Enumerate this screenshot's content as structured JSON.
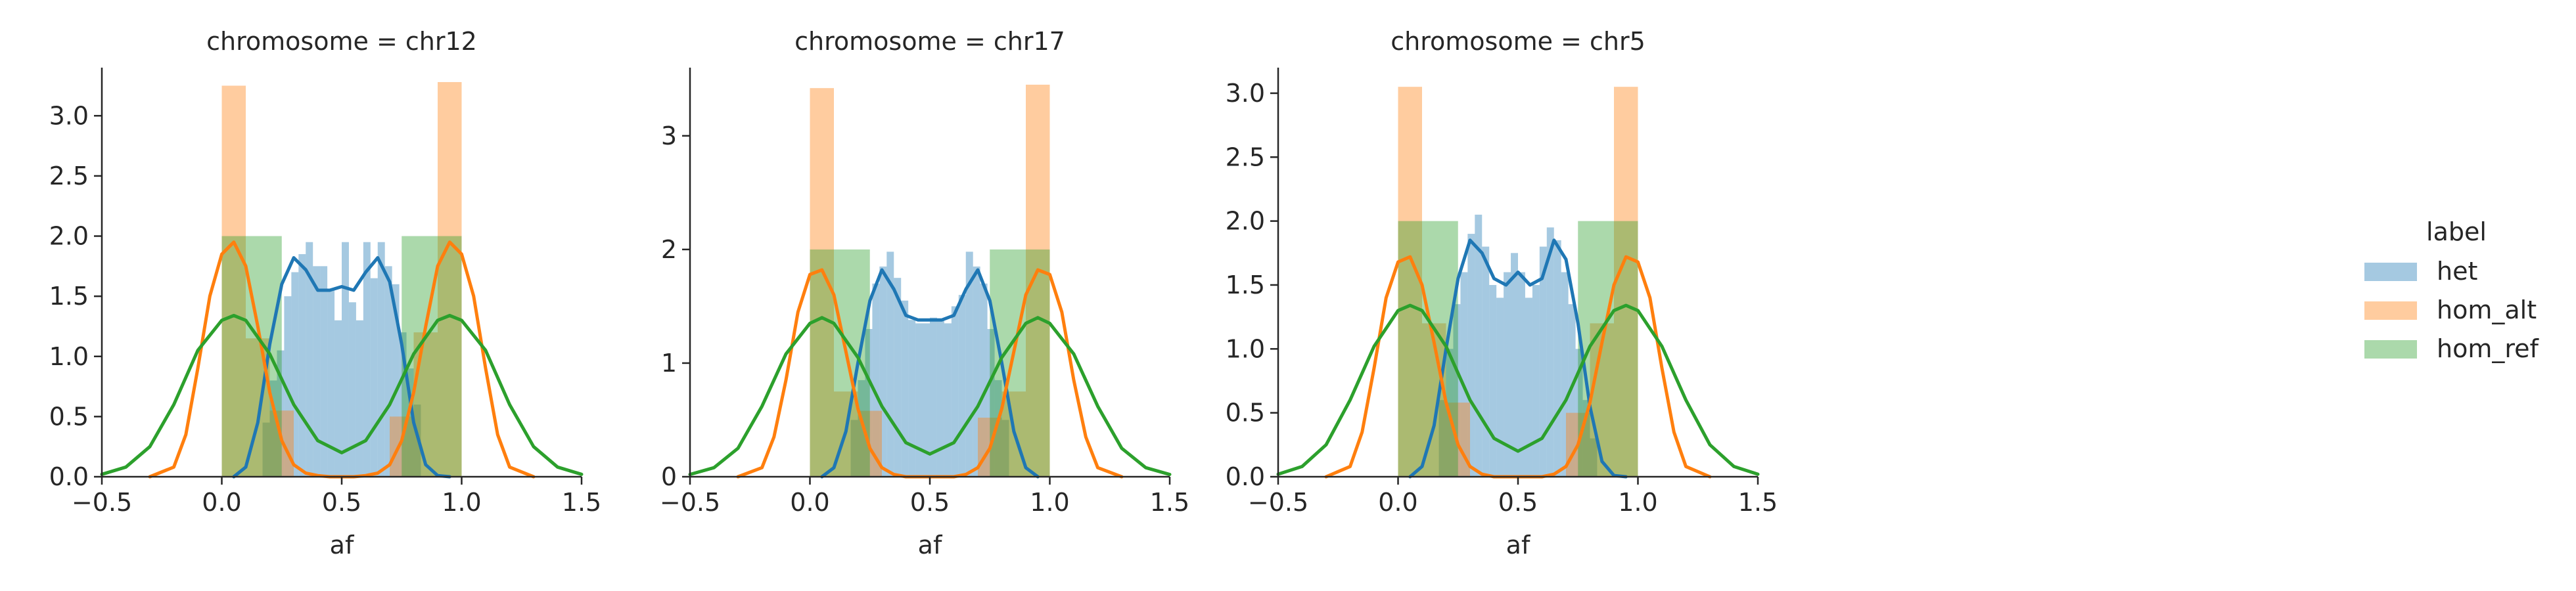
{
  "legend": {
    "title": "label",
    "entries": [
      {
        "label": "het",
        "color": "#1f77b4"
      },
      {
        "label": "hom_alt",
        "color": "#ff7f0e"
      },
      {
        "label": "hom_ref",
        "color": "#2ca02c"
      }
    ]
  },
  "chart_data": [
    {
      "type": "histogram+kde",
      "title": "chromosome = chr12",
      "xlabel": "af",
      "ylabel": "",
      "xlim": [
        -0.5,
        1.5
      ],
      "ylim": [
        0,
        3.4
      ],
      "xticks": [
        "−0.5",
        "0.0",
        "0.5",
        "1.0",
        "1.5"
      ],
      "yticks": [
        0.0,
        0.5,
        1.0,
        1.5,
        2.0,
        2.5,
        3.0
      ],
      "ytick_labels": [
        "0.0",
        "0.5",
        "1.0",
        "1.5",
        "2.0",
        "2.5",
        "3.0"
      ],
      "grid": false,
      "series": [
        {
          "name": "het",
          "histogram": {
            "bin_edges": [
              0.17,
              0.2,
              0.23,
              0.26,
              0.29,
              0.32,
              0.35,
              0.38,
              0.41,
              0.44,
              0.47,
              0.5,
              0.53,
              0.56,
              0.59,
              0.62,
              0.65,
              0.68,
              0.71,
              0.74,
              0.77,
              0.8,
              0.83
            ],
            "heights": [
              0.45,
              0.8,
              1.05,
              1.5,
              1.7,
              1.85,
              1.95,
              1.75,
              1.75,
              1.55,
              1.3,
              1.95,
              1.45,
              1.3,
              1.95,
              1.65,
              1.95,
              1.75,
              1.6,
              1.2,
              0.9,
              0.6
            ]
          },
          "kde": {
            "x": [
              0.05,
              0.1,
              0.15,
              0.2,
              0.25,
              0.3,
              0.35,
              0.4,
              0.45,
              0.5,
              0.55,
              0.6,
              0.65,
              0.7,
              0.75,
              0.8,
              0.85,
              0.9,
              0.95
            ],
            "y": [
              0.0,
              0.08,
              0.45,
              1.1,
              1.6,
              1.82,
              1.72,
              1.55,
              1.55,
              1.58,
              1.55,
              1.7,
              1.82,
              1.62,
              1.1,
              0.45,
              0.1,
              0.01,
              0.0
            ]
          }
        },
        {
          "name": "hom_alt",
          "histogram": {
            "bin_edges": [
              0.0,
              0.1,
              0.2,
              0.3,
              0.7,
              0.8,
              0.9,
              1.0
            ],
            "heights": [
              3.25,
              1.15,
              0.55,
              0.0,
              0.5,
              1.2,
              3.28
            ]
          },
          "kde": {
            "x": [
              -0.3,
              -0.2,
              -0.15,
              -0.1,
              -0.05,
              0.0,
              0.05,
              0.1,
              0.15,
              0.2,
              0.25,
              0.3,
              0.35,
              0.4,
              0.45,
              0.5,
              0.55,
              0.6,
              0.65,
              0.7,
              0.75,
              0.8,
              0.85,
              0.9,
              0.95,
              1.0,
              1.05,
              1.1,
              1.15,
              1.2,
              1.3
            ],
            "y": [
              0.0,
              0.08,
              0.35,
              0.9,
              1.5,
              1.85,
              1.95,
              1.75,
              1.25,
              0.7,
              0.3,
              0.1,
              0.03,
              0.01,
              0.0,
              0.0,
              0.0,
              0.01,
              0.03,
              0.1,
              0.3,
              0.7,
              1.25,
              1.75,
              1.95,
              1.85,
              1.5,
              0.9,
              0.35,
              0.08,
              0.0
            ]
          }
        },
        {
          "name": "hom_ref",
          "histogram": {
            "bin_edges": [
              0.0,
              0.25,
              0.75,
              1.0
            ],
            "heights": [
              2.0,
              0.0,
              2.0
            ]
          },
          "kde": {
            "x": [
              -0.5,
              -0.4,
              -0.3,
              -0.2,
              -0.1,
              0.0,
              0.05,
              0.1,
              0.2,
              0.3,
              0.4,
              0.5,
              0.6,
              0.7,
              0.8,
              0.9,
              0.95,
              1.0,
              1.1,
              1.2,
              1.3,
              1.4,
              1.5
            ],
            "y": [
              0.02,
              0.08,
              0.25,
              0.6,
              1.05,
              1.3,
              1.34,
              1.3,
              1.02,
              0.6,
              0.3,
              0.2,
              0.3,
              0.6,
              1.02,
              1.3,
              1.34,
              1.3,
              1.05,
              0.6,
              0.25,
              0.08,
              0.02
            ]
          }
        }
      ]
    },
    {
      "type": "histogram+kde",
      "title": "chromosome = chr17",
      "xlabel": "af",
      "ylabel": "",
      "xlim": [
        -0.5,
        1.5
      ],
      "ylim": [
        0,
        3.6
      ],
      "xticks": [
        "−0.5",
        "0.0",
        "0.5",
        "1.0",
        "1.5"
      ],
      "yticks": [
        0,
        1,
        2,
        3
      ],
      "ytick_labels": [
        "0",
        "1",
        "2",
        "3"
      ],
      "grid": false,
      "series": [
        {
          "name": "het",
          "histogram": {
            "bin_edges": [
              0.17,
              0.2,
              0.23,
              0.26,
              0.29,
              0.32,
              0.35,
              0.38,
              0.41,
              0.44,
              0.47,
              0.5,
              0.53,
              0.56,
              0.59,
              0.62,
              0.65,
              0.68,
              0.71,
              0.74,
              0.77,
              0.8,
              0.83
            ],
            "heights": [
              0.5,
              0.85,
              1.3,
              1.7,
              1.85,
              1.98,
              1.75,
              1.55,
              1.38,
              1.35,
              1.35,
              1.4,
              1.38,
              1.35,
              1.5,
              1.6,
              1.98,
              1.85,
              1.7,
              1.3,
              0.85,
              0.5
            ]
          },
          "kde": {
            "x": [
              0.05,
              0.1,
              0.15,
              0.2,
              0.25,
              0.3,
              0.35,
              0.4,
              0.45,
              0.5,
              0.55,
              0.6,
              0.65,
              0.7,
              0.75,
              0.8,
              0.85,
              0.9,
              0.95
            ],
            "y": [
              0.0,
              0.08,
              0.4,
              1.0,
              1.55,
              1.82,
              1.65,
              1.42,
              1.38,
              1.38,
              1.38,
              1.42,
              1.65,
              1.82,
              1.55,
              1.0,
              0.4,
              0.08,
              0.0
            ]
          }
        },
        {
          "name": "hom_alt",
          "histogram": {
            "bin_edges": [
              0.0,
              0.1,
              0.2,
              0.3,
              0.7,
              0.8,
              0.9,
              1.0
            ],
            "heights": [
              3.42,
              0.75,
              0.58,
              0.0,
              0.52,
              0.75,
              3.45
            ]
          },
          "kde": {
            "x": [
              -0.3,
              -0.2,
              -0.15,
              -0.1,
              -0.05,
              0.0,
              0.05,
              0.1,
              0.15,
              0.2,
              0.25,
              0.3,
              0.35,
              0.4,
              0.45,
              0.5,
              0.55,
              0.6,
              0.65,
              0.7,
              0.75,
              0.8,
              0.85,
              0.9,
              0.95,
              1.0,
              1.05,
              1.1,
              1.15,
              1.2,
              1.3
            ],
            "y": [
              0.0,
              0.08,
              0.35,
              0.85,
              1.45,
              1.78,
              1.82,
              1.6,
              1.1,
              0.6,
              0.25,
              0.08,
              0.02,
              0.0,
              0.0,
              0.0,
              0.0,
              0.0,
              0.02,
              0.08,
              0.25,
              0.6,
              1.1,
              1.6,
              1.82,
              1.78,
              1.45,
              0.85,
              0.35,
              0.08,
              0.0
            ]
          }
        },
        {
          "name": "hom_ref",
          "histogram": {
            "bin_edges": [
              0.0,
              0.25,
              0.75,
              1.0
            ],
            "heights": [
              2.0,
              0.0,
              2.0
            ]
          },
          "kde": {
            "x": [
              -0.5,
              -0.4,
              -0.3,
              -0.2,
              -0.1,
              0.0,
              0.05,
              0.1,
              0.2,
              0.3,
              0.4,
              0.5,
              0.6,
              0.7,
              0.8,
              0.9,
              0.95,
              1.0,
              1.1,
              1.2,
              1.3,
              1.4,
              1.5
            ],
            "y": [
              0.02,
              0.08,
              0.25,
              0.62,
              1.08,
              1.35,
              1.4,
              1.35,
              1.05,
              0.62,
              0.3,
              0.2,
              0.3,
              0.62,
              1.05,
              1.35,
              1.4,
              1.35,
              1.08,
              0.62,
              0.25,
              0.08,
              0.02
            ]
          }
        }
      ]
    },
    {
      "type": "histogram+kde",
      "title": "chromosome = chr5",
      "xlabel": "af",
      "ylabel": "",
      "xlim": [
        -0.5,
        1.5
      ],
      "ylim": [
        0,
        3.2
      ],
      "xticks": [
        "−0.5",
        "0.0",
        "0.5",
        "1.0",
        "1.5"
      ],
      "yticks": [
        0.0,
        0.5,
        1.0,
        1.5,
        2.0,
        2.5,
        3.0
      ],
      "ytick_labels": [
        "0.0",
        "0.5",
        "1.0",
        "1.5",
        "2.0",
        "2.5",
        "3.0"
      ],
      "grid": false,
      "series": [
        {
          "name": "het",
          "histogram": {
            "bin_edges": [
              0.17,
              0.2,
              0.23,
              0.26,
              0.29,
              0.32,
              0.35,
              0.38,
              0.41,
              0.44,
              0.47,
              0.5,
              0.53,
              0.56,
              0.59,
              0.62,
              0.65,
              0.68,
              0.71,
              0.74,
              0.77,
              0.8,
              0.83
            ],
            "heights": [
              0.6,
              1.0,
              1.35,
              1.6,
              1.9,
              2.05,
              1.8,
              1.5,
              1.4,
              1.6,
              1.75,
              1.6,
              1.4,
              1.5,
              1.8,
              1.95,
              1.85,
              1.6,
              1.35,
              1.0,
              0.6,
              0.3
            ]
          },
          "kde": {
            "x": [
              0.05,
              0.1,
              0.15,
              0.2,
              0.25,
              0.3,
              0.35,
              0.4,
              0.45,
              0.5,
              0.55,
              0.6,
              0.65,
              0.7,
              0.75,
              0.8,
              0.85,
              0.9,
              0.95
            ],
            "y": [
              0.0,
              0.08,
              0.4,
              1.0,
              1.55,
              1.85,
              1.75,
              1.55,
              1.5,
              1.6,
              1.5,
              1.55,
              1.85,
              1.7,
              1.2,
              0.55,
              0.12,
              0.01,
              0.0
            ]
          }
        },
        {
          "name": "hom_alt",
          "histogram": {
            "bin_edges": [
              0.0,
              0.1,
              0.2,
              0.3,
              0.7,
              0.8,
              0.9,
              1.0
            ],
            "heights": [
              3.05,
              1.2,
              0.58,
              0.0,
              0.5,
              1.2,
              3.05
            ]
          },
          "kde": {
            "x": [
              -0.3,
              -0.2,
              -0.15,
              -0.1,
              -0.05,
              0.0,
              0.05,
              0.1,
              0.15,
              0.2,
              0.25,
              0.3,
              0.35,
              0.4,
              0.45,
              0.5,
              0.55,
              0.6,
              0.65,
              0.7,
              0.75,
              0.8,
              0.85,
              0.9,
              0.95,
              1.0,
              1.05,
              1.1,
              1.15,
              1.2,
              1.3
            ],
            "y": [
              0.0,
              0.08,
              0.35,
              0.85,
              1.4,
              1.68,
              1.72,
              1.5,
              1.05,
              0.58,
              0.25,
              0.08,
              0.02,
              0.0,
              0.0,
              0.0,
              0.0,
              0.0,
              0.02,
              0.08,
              0.25,
              0.58,
              1.05,
              1.5,
              1.72,
              1.68,
              1.4,
              0.85,
              0.35,
              0.08,
              0.0
            ]
          }
        },
        {
          "name": "hom_ref",
          "histogram": {
            "bin_edges": [
              0.0,
              0.25,
              0.75,
              1.0
            ],
            "heights": [
              2.0,
              0.0,
              2.0
            ]
          },
          "kde": {
            "x": [
              -0.5,
              -0.4,
              -0.3,
              -0.2,
              -0.1,
              0.0,
              0.05,
              0.1,
              0.2,
              0.3,
              0.4,
              0.5,
              0.6,
              0.7,
              0.8,
              0.9,
              0.95,
              1.0,
              1.1,
              1.2,
              1.3,
              1.4,
              1.5
            ],
            "y": [
              0.02,
              0.08,
              0.25,
              0.6,
              1.02,
              1.3,
              1.34,
              1.3,
              1.02,
              0.6,
              0.3,
              0.2,
              0.3,
              0.6,
              1.02,
              1.3,
              1.34,
              1.3,
              1.02,
              0.6,
              0.25,
              0.08,
              0.02
            ]
          }
        }
      ]
    }
  ]
}
